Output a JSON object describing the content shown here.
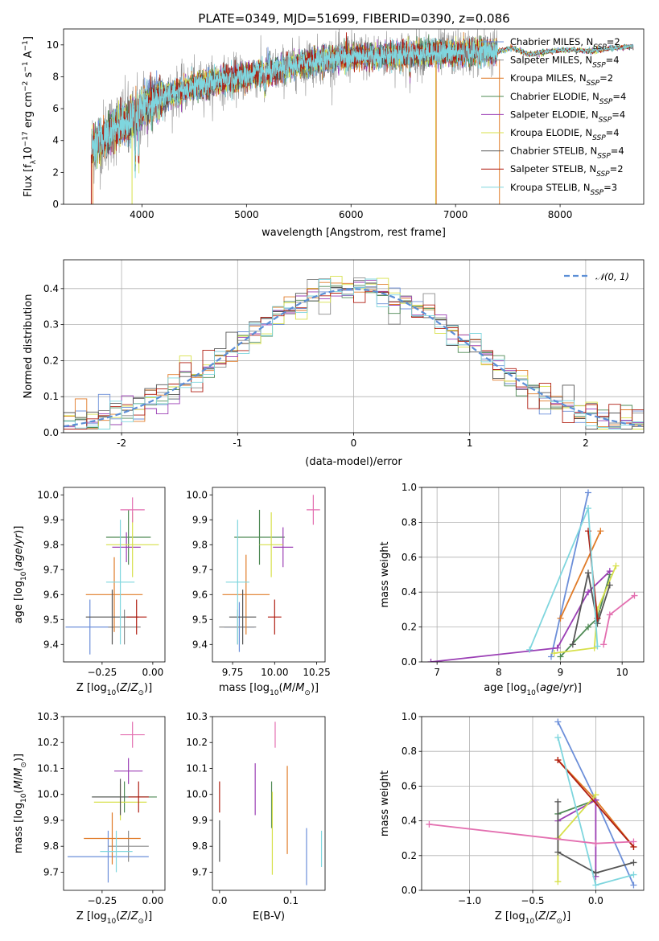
{
  "figure": {
    "title": "PLATE=0349, MJD=51699, FIBERID=0390, z=0.086"
  },
  "legend_entries": [
    {
      "label": "Chabrier MILES, N_SSP=2",
      "text": "Chabrier MILES, N",
      "sub": "SSP",
      "n": "=2",
      "color": "#6c8fd9"
    },
    {
      "label": "Salpeter MILES, N_SSP=4",
      "text": "Salpeter MILES, N",
      "sub": "SSP",
      "n": "=4",
      "color": "#8b8b8b"
    },
    {
      "label": "Kroupa MILES, N_SSP=2",
      "text": "Kroupa MILES, N",
      "sub": "SSP",
      "n": "=2",
      "color": "#e07b28"
    },
    {
      "label": "Chabrier ELODIE, N_SSP=4",
      "text": "Chabrier ELODIE, N",
      "sub": "SSP",
      "n": "=4",
      "color": "#4f8a55"
    },
    {
      "label": "Salpeter ELODIE, N_SSP=4",
      "text": "Salpeter ELODIE, N",
      "sub": "SSP",
      "n": "=4",
      "color": "#9b3fb5"
    },
    {
      "label": "Kroupa ELODIE, N_SSP=4",
      "text": "Kroupa ELODIE, N",
      "sub": "SSP",
      "n": "=4",
      "color": "#d7e04a"
    },
    {
      "label": "Chabrier STELIB, N_SSP=4",
      "text": "Chabrier STELIB, N",
      "sub": "SSP",
      "n": "=4",
      "color": "#555555"
    },
    {
      "label": "Salpeter STELIB, N_SSP=2",
      "text": "Salpeter STELIB, N",
      "sub": "SSP",
      "n": "=2",
      "color": "#b01e12"
    },
    {
      "label": "Kroupa STELIB, N_SSP=3",
      "text": "Kroupa STELIB, N",
      "sub": "SSP",
      "n": "=3",
      "color": "#7fd6de"
    }
  ],
  "chart_data": [
    {
      "id": "spectrum",
      "type": "line",
      "xlabel": "wavelength [Angstrom, rest frame]",
      "ylabel": "Flux [f_λ 10^-17 erg cm^-2 s^-1 A^-1]",
      "xlim": [
        3250,
        8800
      ],
      "ylim": [
        0,
        11
      ],
      "xticks": [
        4000,
        5000,
        6000,
        7000,
        8000
      ],
      "yticks": [
        0,
        2,
        4,
        6,
        8,
        10
      ],
      "grid": false,
      "legend_position": "top-right",
      "continuum": {
        "x": [
          3520,
          3600,
          3700,
          3800,
          3900,
          4000,
          4100,
          4300,
          4500,
          4700,
          4900,
          5100,
          5300,
          5500,
          5700,
          5900,
          6100,
          6300,
          6500,
          6700,
          6900,
          7100,
          7300,
          7400
        ],
        "y": [
          3.6,
          4.0,
          4.6,
          5.1,
          5.3,
          6.1,
          6.4,
          7.0,
          7.4,
          7.7,
          7.9,
          8.2,
          8.4,
          8.8,
          9.0,
          9.2,
          9.3,
          9.3,
          9.4,
          9.5,
          9.5,
          9.5,
          9.6,
          9.6
        ]
      },
      "model_continuum": {
        "x": [
          7400,
          7550,
          7700,
          7900,
          8100,
          8300,
          8500,
          8700
        ],
        "y": [
          9.6,
          9.8,
          9.4,
          9.6,
          9.7,
          9.6,
          9.8,
          9.9
        ]
      }
    },
    {
      "id": "residuals",
      "type": "histogram",
      "xlabel": "(data-model)/error",
      "ylabel": "Normed distribution",
      "xlim": [
        -2.5,
        2.5
      ],
      "ylim": [
        0,
        0.48
      ],
      "xticks": [
        -2,
        -1,
        0,
        1,
        2
      ],
      "yticks": [
        0.0,
        0.1,
        0.2,
        0.3,
        0.4
      ],
      "grid": true,
      "legend_position": "top-right",
      "reference_label": "𝒩(0, 1)",
      "reference_color": "#5b8ed6",
      "bin_width": 0.1
    },
    {
      "id": "age-vs-Z",
      "type": "scatter",
      "xlabel": "Z [log10(Z/Z⊙)]",
      "ylabel": "age [log10(age/yr)]",
      "xlim": [
        -0.44,
        0.06
      ],
      "ylim": [
        9.33,
        10.03
      ],
      "xticks": [
        -0.25,
        0.0
      ],
      "xtick_labels": [
        "−0.25",
        "0.00"
      ],
      "yticks": [
        9.4,
        9.5,
        9.6,
        9.7,
        9.8,
        9.9,
        10.0
      ],
      "points": [
        {
          "x": -0.31,
          "y": 9.47,
          "xerr": 0.12,
          "yerr": 0.11,
          "color": "#6c8fd9"
        },
        {
          "x": -0.14,
          "y": 9.47,
          "xerr": 0.08,
          "yerr": 0.07,
          "color": "#8b8b8b"
        },
        {
          "x": -0.19,
          "y": 9.6,
          "xerr": 0.14,
          "yerr": 0.15,
          "color": "#e07b28"
        },
        {
          "x": -0.12,
          "y": 9.83,
          "xerr": 0.11,
          "yerr": 0.11,
          "color": "#4f8a55"
        },
        {
          "x": -0.13,
          "y": 9.79,
          "xerr": 0.07,
          "yerr": 0.06,
          "color": "#9b3fb5"
        },
        {
          "x": -0.1,
          "y": 9.8,
          "xerr": 0.13,
          "yerr": 0.13,
          "color": "#d7e04a"
        },
        {
          "x": -0.2,
          "y": 9.51,
          "xerr": 0.13,
          "yerr": 0.11,
          "color": "#555555"
        },
        {
          "x": -0.08,
          "y": 9.51,
          "xerr": 0.05,
          "yerr": 0.07,
          "color": "#b01e12"
        },
        {
          "x": -0.16,
          "y": 9.65,
          "xerr": 0.07,
          "yerr": 0.25,
          "color": "#7fd6de"
        },
        {
          "x": -0.1,
          "y": 9.94,
          "xerr": 0.06,
          "yerr": 0.05,
          "color": "#e36fb0"
        }
      ]
    },
    {
      "id": "age-vs-mass",
      "type": "scatter",
      "xlabel": "mass [log10(M/M⊙)]",
      "xlim": [
        9.63,
        10.3
      ],
      "ylim": [
        9.33,
        10.03
      ],
      "xticks": [
        9.75,
        10.0,
        10.25
      ],
      "xtick_labels": [
        "9.75",
        "10.00",
        "10.25"
      ],
      "yticks": [
        9.4,
        9.5,
        9.6,
        9.7,
        9.8,
        9.9,
        10.0
      ],
      "points": [
        {
          "x": 9.79,
          "y": 9.47,
          "xerr": 0.09,
          "yerr": 0.1,
          "color": "#6c8fd9"
        },
        {
          "x": 9.78,
          "y": 9.47,
          "xerr": 0.11,
          "yerr": 0.07,
          "color": "#8b8b8b"
        },
        {
          "x": 9.83,
          "y": 9.6,
          "xerr": 0.14,
          "yerr": 0.16,
          "color": "#e07b28"
        },
        {
          "x": 9.91,
          "y": 9.83,
          "xerr": 0.15,
          "yerr": 0.11,
          "color": "#4f8a55"
        },
        {
          "x": 10.05,
          "y": 9.79,
          "xerr": 0.06,
          "yerr": 0.08,
          "color": "#9b3fb5"
        },
        {
          "x": 9.98,
          "y": 9.8,
          "xerr": 0.07,
          "yerr": 0.13,
          "color": "#d7e04a"
        },
        {
          "x": 9.81,
          "y": 9.51,
          "xerr": 0.08,
          "yerr": 0.11,
          "color": "#555555"
        },
        {
          "x": 10.0,
          "y": 9.51,
          "xerr": 0.04,
          "yerr": 0.07,
          "color": "#b01e12"
        },
        {
          "x": 9.78,
          "y": 9.65,
          "xerr": 0.07,
          "yerr": 0.25,
          "color": "#7fd6de"
        },
        {
          "x": 10.23,
          "y": 9.94,
          "xerr": 0.04,
          "yerr": 0.06,
          "color": "#e36fb0"
        }
      ]
    },
    {
      "id": "mass-weight-vs-age",
      "type": "line",
      "xlabel": "age [log10(age/yr)]",
      "ylabel": "mass weight",
      "xlim": [
        6.75,
        10.35
      ],
      "ylim": [
        0,
        1.0
      ],
      "xticks": [
        7,
        8,
        9,
        10
      ],
      "yticks": [
        0.0,
        0.2,
        0.4,
        0.6,
        0.8,
        1.0
      ],
      "grid": true,
      "series": [
        {
          "color": "#6c8fd9",
          "x": [
            8.85,
            9.45
          ],
          "y": [
            0.03,
            0.97
          ]
        },
        {
          "color": "#e07b28",
          "x": [
            9.0,
            9.65
          ],
          "y": [
            0.25,
            0.75
          ]
        },
        {
          "color": "#4f8a55",
          "x": [
            9.0,
            9.45,
            9.6,
            9.8
          ],
          "y": [
            0.03,
            0.2,
            0.25,
            0.5
          ]
        },
        {
          "color": "#9b3fb5",
          "x": [
            6.9,
            8.95,
            9.45,
            9.8
          ],
          "y": [
            0.0,
            0.08,
            0.4,
            0.52
          ]
        },
        {
          "color": "#d7e04a",
          "x": [
            8.9,
            9.55,
            9.6,
            9.9
          ],
          "y": [
            0.05,
            0.08,
            0.3,
            0.55
          ]
        },
        {
          "color": "#555555",
          "x": [
            9.2,
            9.45,
            9.6,
            9.8
          ],
          "y": [
            0.1,
            0.51,
            0.22,
            0.44
          ]
        },
        {
          "color": "#b01e12",
          "x": [
            9.45,
            9.6
          ],
          "y": [
            0.75,
            0.25
          ]
        },
        {
          "color": "#7fd6de",
          "x": [
            8.5,
            9.45,
            9.6
          ],
          "y": [
            0.07,
            0.88,
            0.09
          ]
        },
        {
          "color": "#e36fb0",
          "x": [
            9.7,
            9.8,
            10.2
          ],
          "y": [
            0.1,
            0.27,
            0.38
          ]
        }
      ]
    },
    {
      "id": "mass-vs-Z",
      "type": "scatter",
      "xlabel": "Z [log10(Z/Z⊙)]",
      "ylabel": "mass [log10(M/M⊙)]",
      "xlim": [
        -0.44,
        0.06
      ],
      "ylim": [
        9.63,
        10.3
      ],
      "xticks": [
        -0.25,
        0.0
      ],
      "xtick_labels": [
        "−0.25",
        "0.00"
      ],
      "yticks": [
        9.7,
        9.8,
        9.9,
        10.0,
        10.1,
        10.2,
        10.3
      ],
      "points": [
        {
          "x": -0.22,
          "y": 9.76,
          "xerr": 0.2,
          "yerr": 0.1,
          "color": "#6c8fd9"
        },
        {
          "x": -0.12,
          "y": 9.8,
          "xerr": 0.1,
          "yerr": 0.06,
          "color": "#8b8b8b"
        },
        {
          "x": -0.2,
          "y": 9.83,
          "xerr": 0.14,
          "yerr": 0.1,
          "color": "#e07b28"
        },
        {
          "x": -0.14,
          "y": 9.99,
          "xerr": 0.16,
          "yerr": 0.06,
          "color": "#4f8a55"
        },
        {
          "x": -0.12,
          "y": 10.09,
          "xerr": 0.07,
          "yerr": 0.05,
          "color": "#9b3fb5"
        },
        {
          "x": -0.16,
          "y": 9.97,
          "xerr": 0.13,
          "yerr": 0.07,
          "color": "#d7e04a"
        },
        {
          "x": -0.16,
          "y": 9.99,
          "xerr": 0.14,
          "yerr": 0.07,
          "color": "#555555"
        },
        {
          "x": -0.07,
          "y": 9.99,
          "xerr": 0.05,
          "yerr": 0.06,
          "color": "#b01e12"
        },
        {
          "x": -0.18,
          "y": 9.78,
          "xerr": 0.08,
          "yerr": 0.08,
          "color": "#7fd6de"
        },
        {
          "x": -0.1,
          "y": 10.23,
          "xerr": 0.06,
          "yerr": 0.05,
          "color": "#e36fb0"
        }
      ]
    },
    {
      "id": "mass-vs-EBV",
      "type": "scatter",
      "xlabel": "E(B-V)",
      "xlim": [
        -0.01,
        0.148
      ],
      "ylim": [
        9.63,
        10.3
      ],
      "xticks": [
        0.0,
        0.1
      ],
      "xtick_labels": [
        "0.0",
        "0.1"
      ],
      "yticks": [
        9.7,
        9.8,
        9.9,
        10.0,
        10.1,
        10.2,
        10.3
      ],
      "points": [
        {
          "x": 0.0,
          "y": 9.82,
          "xerr": 0.0,
          "yerr": 0.08,
          "color": "#555555"
        },
        {
          "x": 0.0,
          "y": 9.99,
          "xerr": 0.0,
          "yerr": 0.06,
          "color": "#b01e12"
        },
        {
          "x": 0.05,
          "y": 10.02,
          "xerr": 0.0,
          "yerr": 0.1,
          "color": "#9b3fb5"
        },
        {
          "x": 0.073,
          "y": 9.96,
          "xerr": 0.0,
          "yerr": 0.09,
          "color": "#4f8a55"
        },
        {
          "x": 0.074,
          "y": 9.85,
          "xerr": 0.0,
          "yerr": 0.16,
          "color": "#d7e04a"
        },
        {
          "x": 0.078,
          "y": 10.23,
          "xerr": 0.0,
          "yerr": 0.05,
          "color": "#e36fb0"
        },
        {
          "x": 0.095,
          "y": 9.94,
          "xerr": 0.0,
          "yerr": 0.17,
          "color": "#e07b28"
        },
        {
          "x": 0.122,
          "y": 9.76,
          "xerr": 0.0,
          "yerr": 0.11,
          "color": "#6c8fd9"
        },
        {
          "x": 0.143,
          "y": 9.79,
          "xerr": 0.0,
          "yerr": 0.07,
          "color": "#7fd6de"
        }
      ]
    },
    {
      "id": "mass-weight-vs-Z",
      "type": "line",
      "xlabel": "Z [log10(Z/Z⊙)]",
      "ylabel": "mass weight",
      "xlim": [
        -1.38,
        0.38
      ],
      "ylim": [
        0,
        1.0
      ],
      "xticks": [
        -1.0,
        -0.5,
        0.0
      ],
      "xtick_labels": [
        "−1.0",
        "−0.5",
        "0.0"
      ],
      "yticks": [
        0.0,
        0.2,
        0.4,
        0.6,
        0.8,
        1.0
      ],
      "grid": true,
      "series": [
        {
          "color": "#6c8fd9",
          "x": [
            -0.3,
            0.0,
            0.3
          ],
          "y": [
            0.97,
            0.52,
            0.03
          ]
        },
        {
          "color": "#e07b28",
          "x": [
            -0.3,
            0.0,
            0.3
          ],
          "y": [
            0.75,
            0.52,
            0.25
          ]
        },
        {
          "color": "#4f8a55",
          "x": [
            -0.3,
            0.0
          ],
          "y": [
            0.44,
            0.52
          ]
        },
        {
          "color": "#9b3fb5",
          "x": [
            -0.3,
            0.0,
            0.0
          ],
          "y": [
            0.4,
            0.52,
            0.08
          ]
        },
        {
          "color": "#d7e04a",
          "x": [
            -0.3,
            -0.3,
            0.0
          ],
          "y": [
            0.05,
            0.3,
            0.55
          ]
        },
        {
          "color": "#555555",
          "x": [
            -0.3,
            -0.3,
            0.0,
            0.3
          ],
          "y": [
            0.51,
            0.22,
            0.1,
            0.16
          ]
        },
        {
          "color": "#b01e12",
          "x": [
            -0.3,
            0.3
          ],
          "y": [
            0.75,
            0.25
          ]
        },
        {
          "color": "#7fd6de",
          "x": [
            -0.3,
            0.0,
            0.3
          ],
          "y": [
            0.88,
            0.03,
            0.09
          ]
        },
        {
          "color": "#e36fb0",
          "x": [
            -1.32,
            0.0,
            0.3
          ],
          "y": [
            0.38,
            0.27,
            0.28
          ]
        }
      ]
    }
  ]
}
